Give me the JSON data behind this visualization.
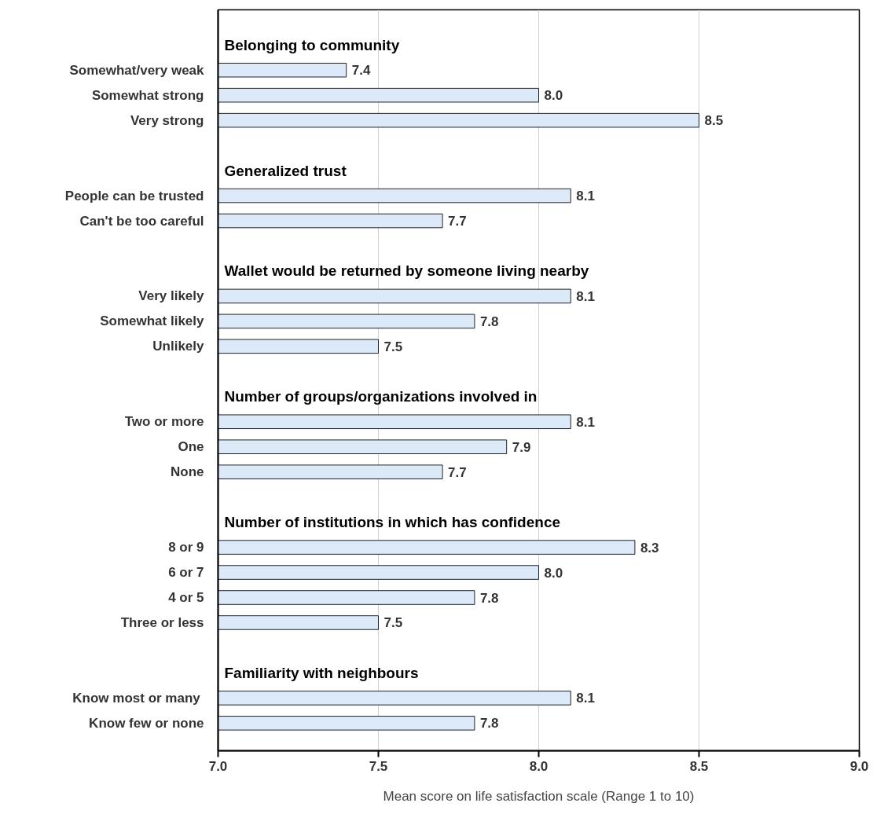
{
  "chart_data": {
    "type": "bar",
    "orientation": "horizontal",
    "xlabel": "Mean score on life satisfaction scale (Range 1 to 10)",
    "categories": [
      "Belonging to community",
      "Somewhat/very weak",
      "Somewhat strong",
      "Very strong",
      null,
      "Generalized trust",
      "People can be trusted",
      "Can't be too careful",
      null,
      "Wallet would be returned by someone living nearby",
      "Very likely",
      "Somewhat likely",
      "Unlikely",
      null,
      "Number of groups/organizations involved in",
      "Two or more",
      "One",
      "None",
      null,
      "Number of institutions in which has confidence",
      "8 or 9",
      "6 or 7",
      "4 or 5",
      "Three or less",
      null,
      "Familiarity with neighbours",
      "Know most or many ",
      "Know few or none"
    ],
    "values": [
      null,
      7.4,
      8.0,
      8.5,
      null,
      null,
      8.1,
      7.7,
      null,
      null,
      8.1,
      7.8,
      7.5,
      null,
      null,
      8.1,
      7.9,
      7.7,
      null,
      null,
      8.3,
      8.0,
      7.8,
      7.5,
      null,
      null,
      8.1,
      7.8
    ],
    "color": "#dce9f8",
    "xlim": [
      7.0,
      9.0
    ],
    "xticks": [
      {
        "value": 7.0,
        "label": "7.0"
      },
      {
        "value": 7.5,
        "label": "7.5"
      },
      {
        "value": 8.0,
        "label": "8.0"
      },
      {
        "value": 8.5,
        "label": "8.5"
      },
      {
        "value": 9.0,
        "label": "9.0"
      }
    ],
    "grid": "x",
    "value_labels": [
      null,
      "7.4",
      "8.0",
      "8.5",
      null,
      null,
      "8.1",
      "7.7",
      null,
      null,
      "8.1",
      "7.8",
      "7.5",
      null,
      null,
      "8.1",
      "7.9",
      "7.7",
      null,
      null,
      "8.3",
      "8.0",
      "7.8",
      "7.5",
      null,
      null,
      "8.1",
      "7.8"
    ]
  }
}
